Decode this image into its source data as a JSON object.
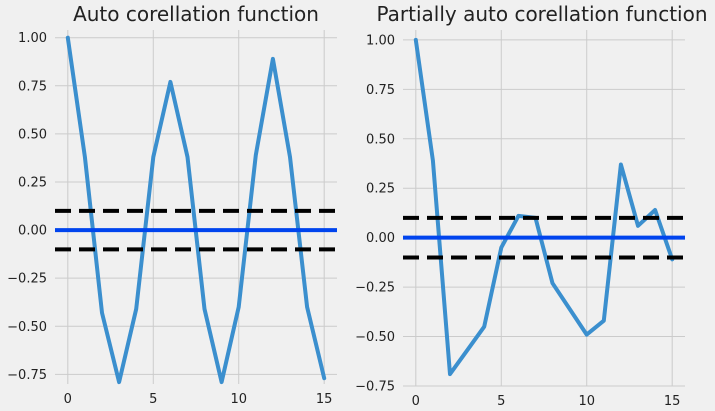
{
  "chart_data": [
    {
      "type": "line",
      "title": "Auto corellation function",
      "xlabel": "",
      "ylabel": "",
      "xlim": [
        -0.75,
        15.75
      ],
      "ylim": [
        -0.8,
        1.04
      ],
      "xticks": [
        0,
        5,
        10,
        15
      ],
      "yticks": [
        -0.75,
        -0.5,
        -0.25,
        0.0,
        0.25,
        0.5,
        0.75,
        1.0
      ],
      "ytick_labels": [
        "−0.75",
        "−0.50",
        "−0.25",
        "0.00",
        "0.25",
        "0.50",
        "0.75",
        "1.00"
      ],
      "grid": true,
      "series": [
        {
          "color": "#3b8fce",
          "x": [
            0,
            1,
            2,
            3,
            4,
            5,
            6,
            7,
            8,
            9,
            10,
            11,
            12,
            13,
            14,
            15
          ],
          "values": [
            1.0,
            0.38,
            -0.43,
            -0.79,
            -0.41,
            0.38,
            0.77,
            0.38,
            -0.41,
            -0.79,
            -0.4,
            0.39,
            0.89,
            0.38,
            -0.4,
            -0.77
          ]
        }
      ],
      "hlines": [
        {
          "y": 0.0,
          "color": "#0044ee",
          "style": "solid"
        },
        {
          "y": 0.1,
          "color": "#000000",
          "style": "dashed"
        },
        {
          "y": -0.1,
          "color": "#000000",
          "style": "dashed"
        }
      ]
    },
    {
      "type": "line",
      "title": "Partially auto corellation function",
      "xlabel": "",
      "ylabel": "",
      "xlim": [
        -0.75,
        15.75
      ],
      "ylim": [
        -0.75,
        1.05
      ],
      "xticks": [
        0,
        5,
        10,
        15
      ],
      "yticks": [
        -0.75,
        -0.5,
        -0.25,
        0.0,
        0.25,
        0.5,
        0.75,
        1.0
      ],
      "ytick_labels": [
        "−0.75",
        "−0.50",
        "−0.25",
        "0.00",
        "0.25",
        "0.50",
        "0.75",
        "1.00"
      ],
      "grid": true,
      "series": [
        {
          "color": "#3b8fce",
          "x": [
            0,
            1,
            2,
            3,
            4,
            5,
            6,
            7,
            8,
            9,
            10,
            11,
            12,
            13,
            14,
            15
          ],
          "values": [
            1.0,
            0.39,
            -0.69,
            -0.57,
            -0.45,
            -0.05,
            0.11,
            0.1,
            -0.23,
            -0.36,
            -0.49,
            -0.42,
            0.37,
            0.06,
            0.14,
            -0.11
          ]
        }
      ],
      "hlines": [
        {
          "y": 0.0,
          "color": "#0044ee",
          "style": "solid"
        },
        {
          "y": 0.1,
          "color": "#000000",
          "style": "dashed"
        },
        {
          "y": -0.1,
          "color": "#000000",
          "style": "dashed"
        }
      ]
    }
  ]
}
